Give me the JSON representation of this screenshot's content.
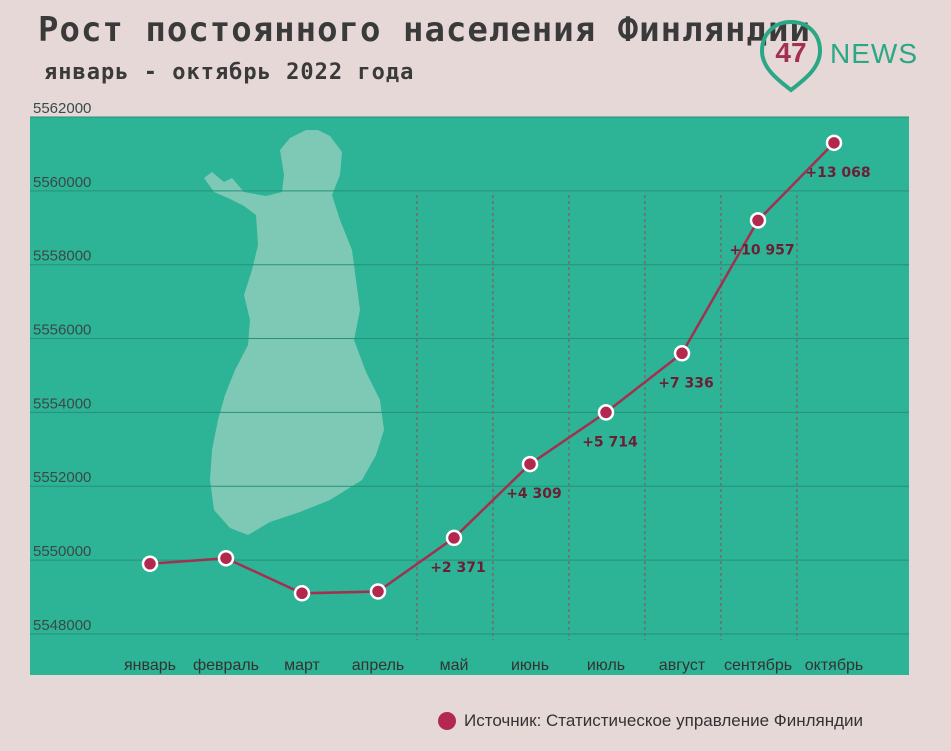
{
  "header": {
    "title": "Рост постоянного населения Финляндии",
    "subtitle": "январь - октябрь 2022 года"
  },
  "logo": {
    "number": "47",
    "text": "NEWS"
  },
  "source": {
    "text": "Источник: Статистическое управление Финляндии"
  },
  "chart_data": {
    "type": "line",
    "categories": [
      "январь",
      "февраль",
      "март",
      "апрель",
      "май",
      "июнь",
      "июль",
      "август",
      "сентябрь",
      "октябрь"
    ],
    "values": [
      5549900,
      5550050,
      5549100,
      5549150,
      5550600,
      5552600,
      5554000,
      5555600,
      5559200,
      5561300
    ],
    "data_labels": [
      "",
      "",
      "",
      "",
      "+2 371",
      "+4 309",
      "+5 714",
      "+7 336",
      "+10 957",
      "+13 068"
    ],
    "y_ticks": [
      5548000,
      5550000,
      5552000,
      5554000,
      5556000,
      5558000,
      5560000,
      5562000
    ],
    "ylim": [
      5547700,
      5562000
    ],
    "grid": true,
    "colors": {
      "plot_bg": "#2db395",
      "line": "#a3304f",
      "marker": "#b3284f",
      "marker_stroke": "#ffffff",
      "map": "#7ec9b6"
    }
  }
}
